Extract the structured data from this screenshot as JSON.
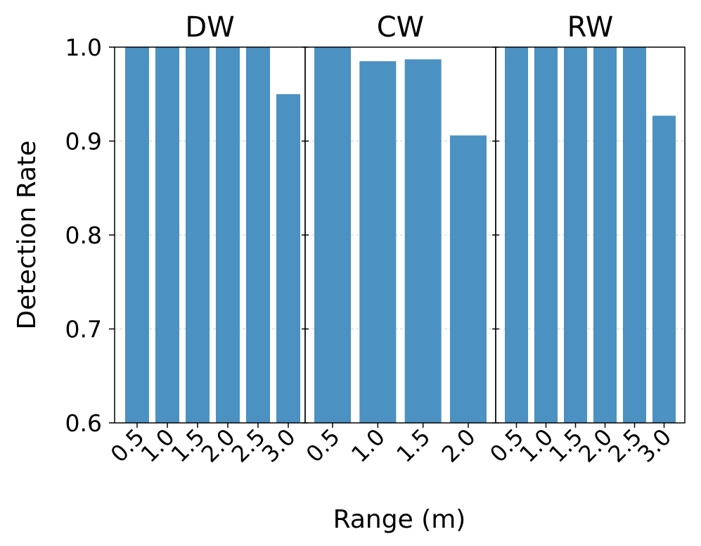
{
  "chart_data": {
    "type": "bar",
    "ylabel": "Detection Rate",
    "xlabel": "Range (m)",
    "ylim": [
      0.6,
      1.0
    ],
    "yticks": [
      "0.6",
      "0.7",
      "0.8",
      "0.9",
      "1.0"
    ],
    "grid": "horizontal dashed",
    "bar_color": "#4b91c2",
    "panels": [
      {
        "title": "DW",
        "categories": [
          "0.5",
          "1.0",
          "1.5",
          "2.0",
          "2.5",
          "3.0"
        ],
        "values": [
          1.0,
          1.0,
          1.0,
          1.0,
          1.0,
          0.95
        ]
      },
      {
        "title": "CW",
        "categories": [
          "0.5",
          "1.0",
          "1.5",
          "2.0"
        ],
        "values": [
          1.0,
          0.985,
          0.987,
          0.906
        ]
      },
      {
        "title": "RW",
        "categories": [
          "0.5",
          "1.0",
          "1.5",
          "2.0",
          "2.5",
          "3.0"
        ],
        "values": [
          1.0,
          1.0,
          1.0,
          1.0,
          1.0,
          0.927
        ]
      }
    ]
  }
}
